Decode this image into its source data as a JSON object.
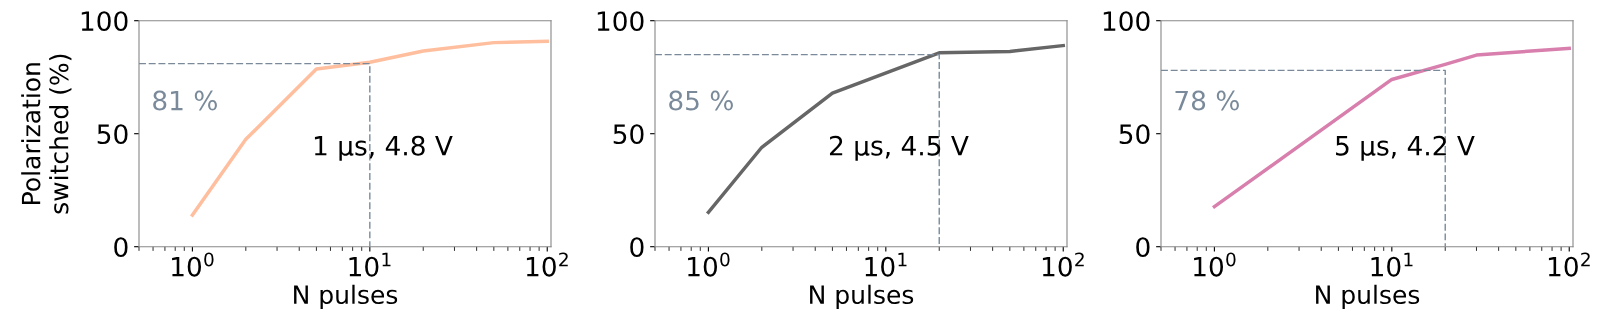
{
  "chart_data": [
    {
      "type": "line",
      "xlabel": "N pulses",
      "ylabel": "Polarization\nswitched (%)",
      "log": "x",
      "xlim": [
        0.5,
        105
      ],
      "ylim": [
        0,
        100
      ],
      "xticks": [
        {
          "value": 1,
          "label": "10$^{0}$"
        },
        {
          "value": 10,
          "label": "10$^{1}$"
        },
        {
          "value": 100,
          "label": "10$^{2}$"
        }
      ],
      "yticks": [
        0,
        50,
        100
      ],
      "x": [
        1,
        2,
        5,
        10,
        20,
        50,
        100
      ],
      "series": [
        {
          "color": "#ffbf9e",
          "values": [
            14,
            47.5,
            78.6,
            81.6,
            86.6,
            90.3,
            90.9
          ]
        },
        {
          "color": "#7a8a9a",
          "line_style": "dashed",
          "x": [
            0.5,
            10,
            10
          ],
          "values": [
            81,
            81,
            0
          ]
        }
      ],
      "annotations": [
        "81 %",
        "1 μs, 4.8 V"
      ]
    },
    {
      "type": "line",
      "xlabel": "N pulses",
      "log": "x",
      "xlim": [
        0.5,
        105
      ],
      "ylim": [
        0,
        100
      ],
      "xticks": [
        {
          "value": 1,
          "label": "10$^{0}$"
        },
        {
          "value": 10,
          "label": "10$^{1}$"
        },
        {
          "value": 100,
          "label": "10$^{2}$"
        }
      ],
      "yticks": [
        0,
        50,
        100
      ],
      "x": [
        1,
        2,
        5,
        20,
        50,
        100
      ],
      "series": [
        {
          "color": "#666666",
          "values": [
            15.2,
            44,
            68,
            85.8,
            86.4,
            89
          ]
        },
        {
          "color": "#7a8a9a",
          "line_style": "dashed",
          "x": [
            0.5,
            20,
            20
          ],
          "values": [
            85,
            85,
            0
          ]
        }
      ],
      "annotations": [
        "85 %",
        "2 μs, 4.5 V"
      ]
    },
    {
      "type": "line",
      "xlabel": "N pulses",
      "log": "x",
      "xlim": [
        0.5,
        105
      ],
      "ylim": [
        0,
        100
      ],
      "xticks": [
        {
          "value": 1,
          "label": "10$^{0}$"
        },
        {
          "value": 10,
          "label": "10$^{1}$"
        },
        {
          "value": 100,
          "label": "10$^{2}$"
        }
      ],
      "yticks": [
        0,
        50,
        100
      ],
      "x": [
        1,
        10,
        20,
        30,
        100
      ],
      "series": [
        {
          "color": "#d87fad",
          "values": [
            17.7,
            74,
            80.7,
            84.8,
            87.8
          ]
        },
        {
          "color": "#7a8a9a",
          "line_style": "dashed",
          "x": [
            0.5,
            20,
            20
          ],
          "values": [
            78,
            78,
            0
          ]
        }
      ],
      "annotations": [
        "78 %",
        "5 μs, 4.2 V"
      ]
    }
  ]
}
